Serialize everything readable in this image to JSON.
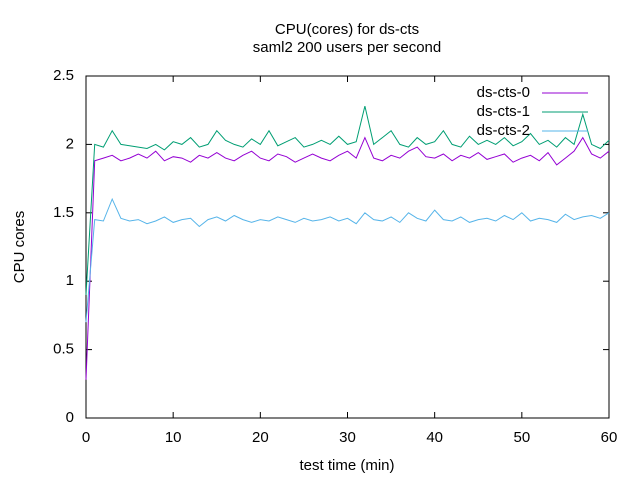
{
  "chart_data": {
    "type": "line",
    "title": "CPU(cores) for ds-cts",
    "subtitle": "saml2 200 users per second",
    "x_label": "test time (min)",
    "y_label": "CPU cores",
    "xlim": [
      0,
      60
    ],
    "xticks": [
      0,
      10,
      20,
      30,
      40,
      50,
      60
    ],
    "ylim": [
      0,
      2.5
    ],
    "yticks": [
      0,
      0.5,
      1,
      1.5,
      2,
      2.5
    ],
    "legend": "top-right",
    "x": [
      0,
      1,
      2,
      3,
      4,
      5,
      6,
      7,
      8,
      9,
      10,
      11,
      12,
      13,
      14,
      15,
      16,
      17,
      18,
      19,
      20,
      21,
      22,
      23,
      24,
      25,
      26,
      27,
      28,
      29,
      30,
      31,
      32,
      33,
      34,
      35,
      36,
      37,
      38,
      39,
      40,
      41,
      42,
      43,
      44,
      45,
      46,
      47,
      48,
      49,
      50,
      51,
      52,
      53,
      54,
      55,
      56,
      57,
      58,
      59,
      60
    ],
    "series": [
      {
        "name": "ds-cts-0",
        "color": "#9400d3",
        "values": [
          0.28,
          1.88,
          1.9,
          1.92,
          1.88,
          1.9,
          1.93,
          1.9,
          1.95,
          1.88,
          1.91,
          1.9,
          1.87,
          1.92,
          1.9,
          1.94,
          1.9,
          1.88,
          1.92,
          1.95,
          1.9,
          1.88,
          1.93,
          1.91,
          1.87,
          1.9,
          1.93,
          1.9,
          1.88,
          1.92,
          1.95,
          1.9,
          2.05,
          1.9,
          1.88,
          1.92,
          1.9,
          1.95,
          1.98,
          1.91,
          1.9,
          1.93,
          1.88,
          1.92,
          1.9,
          1.94,
          1.89,
          1.91,
          1.93,
          1.87,
          1.9,
          1.92,
          1.88,
          1.94,
          1.85,
          1.9,
          1.95,
          2.05,
          1.93,
          1.9,
          1.95
        ]
      },
      {
        "name": "ds-cts-1",
        "color": "#009e73",
        "values": [
          0.9,
          2.0,
          1.98,
          2.1,
          2.0,
          1.99,
          1.98,
          1.97,
          2.0,
          1.96,
          2.02,
          2.0,
          2.05,
          1.98,
          2.0,
          2.1,
          2.03,
          2.0,
          1.98,
          2.04,
          2.0,
          2.1,
          1.99,
          2.02,
          2.05,
          1.98,
          2.0,
          2.03,
          2.0,
          2.06,
          2.0,
          2.02,
          2.28,
          2.0,
          2.05,
          2.1,
          2.0,
          1.98,
          2.05,
          2.0,
          2.02,
          2.1,
          2.0,
          1.98,
          2.06,
          2.0,
          2.03,
          2.0,
          2.05,
          1.99,
          2.02,
          2.08,
          2.0,
          2.03,
          1.98,
          2.05,
          2.0,
          2.22,
          2.0,
          1.97,
          2.03
        ]
      },
      {
        "name": "ds-cts-2",
        "color": "#56b4e9",
        "values": [
          0.7,
          1.45,
          1.44,
          1.6,
          1.46,
          1.44,
          1.45,
          1.42,
          1.44,
          1.47,
          1.43,
          1.45,
          1.46,
          1.4,
          1.45,
          1.47,
          1.44,
          1.48,
          1.45,
          1.43,
          1.45,
          1.44,
          1.47,
          1.45,
          1.43,
          1.46,
          1.44,
          1.45,
          1.47,
          1.44,
          1.46,
          1.42,
          1.5,
          1.45,
          1.44,
          1.47,
          1.43,
          1.5,
          1.46,
          1.44,
          1.52,
          1.45,
          1.44,
          1.47,
          1.43,
          1.45,
          1.46,
          1.44,
          1.48,
          1.45,
          1.5,
          1.44,
          1.46,
          1.45,
          1.43,
          1.49,
          1.45,
          1.47,
          1.48,
          1.46,
          1.5
        ]
      }
    ]
  }
}
